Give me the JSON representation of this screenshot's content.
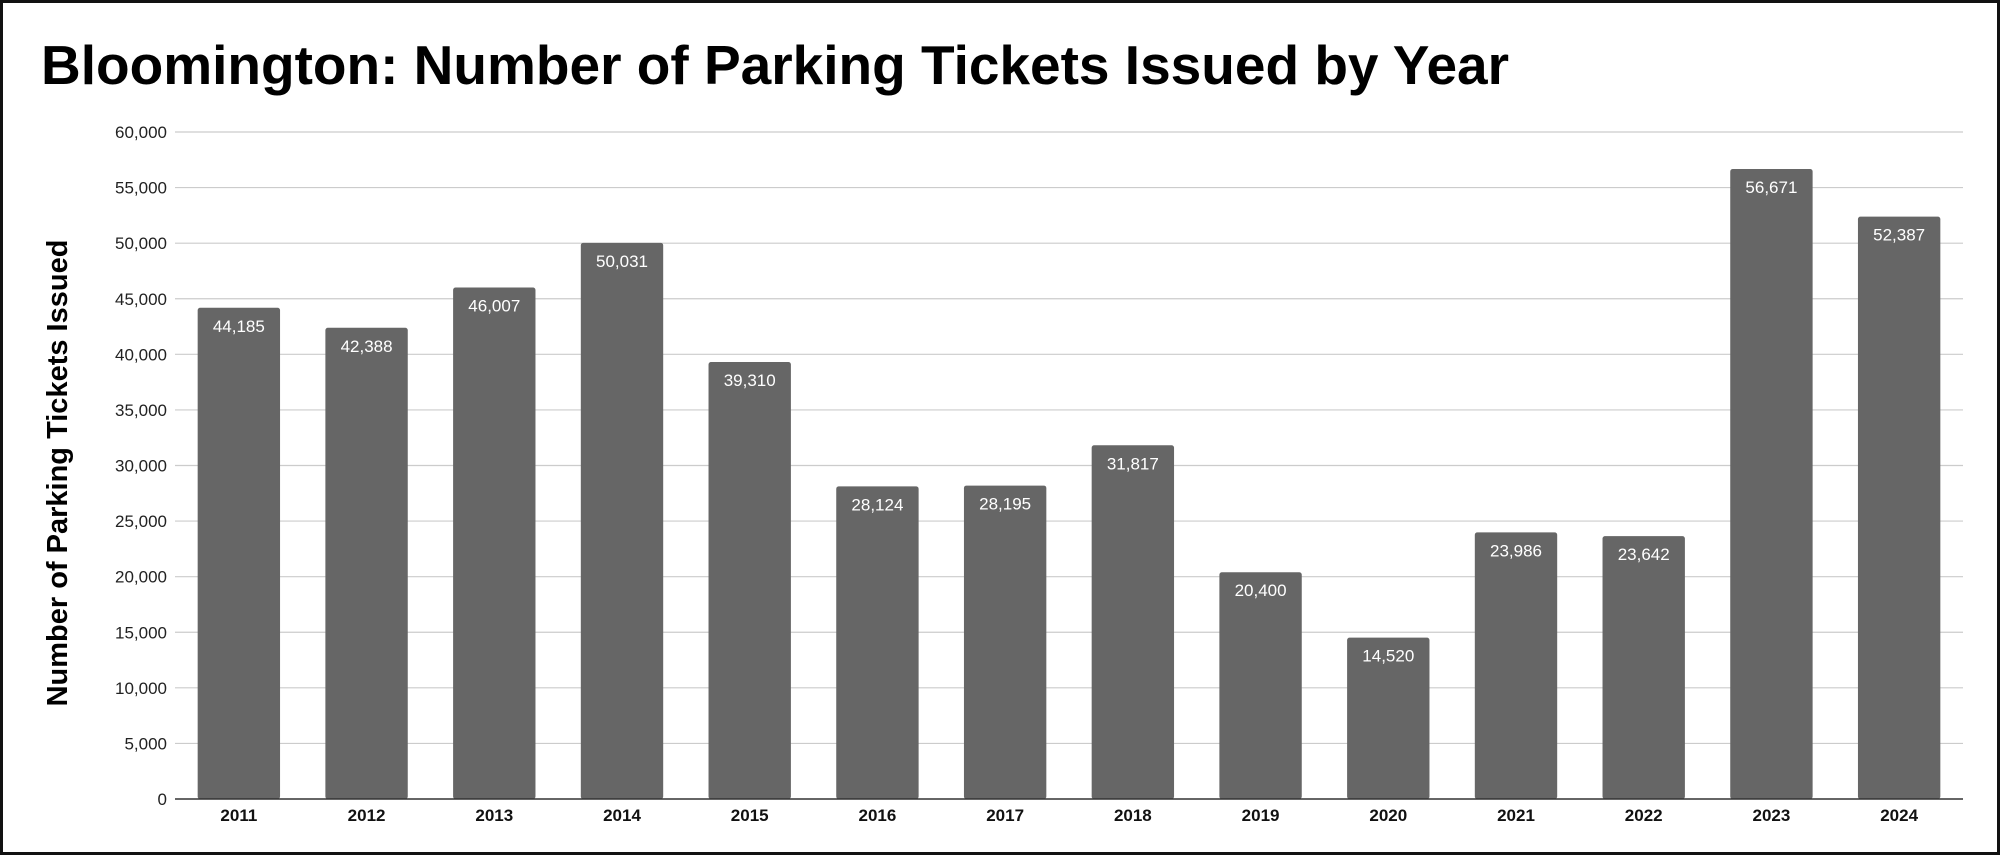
{
  "chart_data": {
    "type": "bar",
    "title": "Bloomington: Number of Parking Tickets Issued by Year",
    "xlabel": "",
    "ylabel": "Number of Parking Tickets Issued",
    "categories": [
      "2011",
      "2012",
      "2013",
      "2014",
      "2015",
      "2016",
      "2017",
      "2018",
      "2019",
      "2020",
      "2021",
      "2022",
      "2023",
      "2024"
    ],
    "values": [
      44185,
      42388,
      46007,
      50031,
      39310,
      28124,
      28195,
      31817,
      20400,
      14520,
      23986,
      23642,
      56671,
      52387
    ],
    "data_labels": [
      "44,185",
      "42,388",
      "46,007",
      "50,031",
      "39,310",
      "28,124",
      "28,195",
      "31,817",
      "20,400",
      "14,520",
      "23,986",
      "23,642",
      "56,671",
      "52,387"
    ],
    "ylim": [
      0,
      60000
    ],
    "y_ticks": [
      0,
      5000,
      10000,
      15000,
      20000,
      25000,
      30000,
      35000,
      40000,
      45000,
      50000,
      55000,
      60000
    ],
    "y_tick_labels": [
      "0",
      "5,000",
      "10,000",
      "15,000",
      "20,000",
      "25,000",
      "30,000",
      "35,000",
      "40,000",
      "45,000",
      "50,000",
      "55,000",
      "60,000"
    ],
    "grid": true,
    "legend": "none",
    "bar_color": "#666666",
    "grid_color": "#cccccc"
  }
}
